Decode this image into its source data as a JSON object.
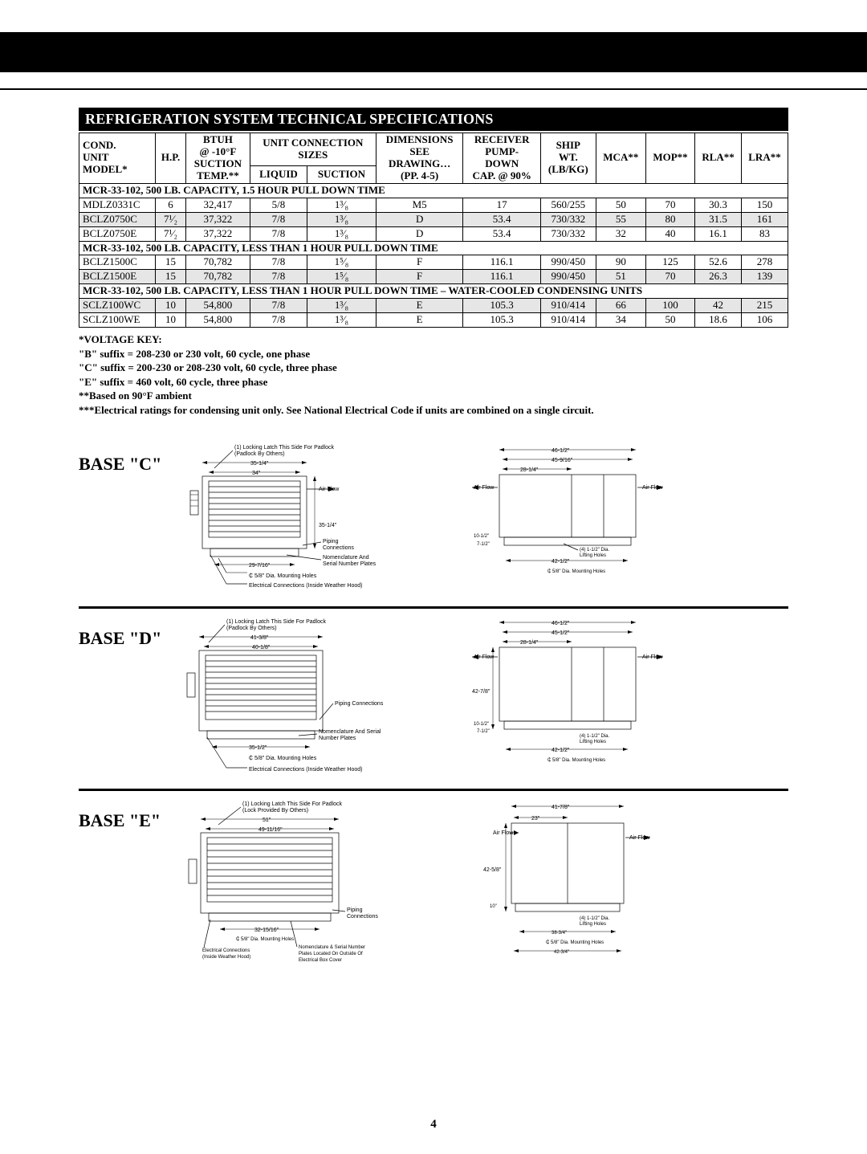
{
  "title": "REFRIGERATION SYSTEM TECHNICAL SPECIFICATIONS",
  "page_number": "4",
  "headers": {
    "c1a": "COND.",
    "c1b": "UNIT",
    "c1c": "MODEL*",
    "c2": "H.P.",
    "c3a": "BTUH",
    "c3b": "@ -10°F",
    "c3c": "SUCTION",
    "c3d": "TEMP.**",
    "c45a": "UNIT CONNECTION",
    "c45b": "SIZES",
    "c4": "LIQUID",
    "c5": "SUCTION",
    "c6a": "DIMENSIONS",
    "c6b": "SEE",
    "c6c": "DRAWING…",
    "c6d": "(PP. 4-5)",
    "c7a": "RECEIVER",
    "c7b": "PUMP-",
    "c7c": "DOWN",
    "c7d": "CAP. @ 90%",
    "c8a": "SHIP",
    "c8b": "WT.",
    "c8c": "(LB/KG)",
    "c9": "MCA**",
    "c10": "MOP**",
    "c11": "RLA**",
    "c12": "LRA**"
  },
  "sections": [
    {
      "title": "MCR-33-102, 500 LB. CAPACITY, 1.5 HOUR PULL DOWN TIME",
      "rows": [
        {
          "shade": false,
          "cells": [
            "MDLZ0331C",
            "6",
            "32,417",
            "5/8",
            "1³⁄₈",
            "M5",
            "17",
            "560/255",
            "50",
            "70",
            "30.3",
            "150"
          ]
        },
        {
          "shade": true,
          "cells": [
            "BCLZ0750C",
            "7¹⁄₂",
            "37,322",
            "7/8",
            "1³⁄₈",
            "D",
            "53.4",
            "730/332",
            "55",
            "80",
            "31.5",
            "161"
          ]
        },
        {
          "shade": false,
          "cells": [
            "BCLZ0750E",
            "7¹⁄₂",
            "37,322",
            "7/8",
            "1³⁄₈",
            "D",
            "53.4",
            "730/332",
            "32",
            "40",
            "16.1",
            "83"
          ]
        }
      ]
    },
    {
      "title": "MCR-33-102, 500 LB. CAPACITY, LESS THAN 1 HOUR PULL DOWN TIME",
      "rows": [
        {
          "shade": false,
          "cells": [
            "BCLZ1500C",
            "15",
            "70,782",
            "7/8",
            "1⁵⁄₈",
            "F",
            "116.1",
            "990/450",
            "90",
            "125",
            "52.6",
            "278"
          ]
        },
        {
          "shade": true,
          "cells": [
            "BCLZ1500E",
            "15",
            "70,782",
            "7/8",
            "1⁵⁄₈",
            "F",
            "116.1",
            "990/450",
            "51",
            "70",
            "26.3",
            "139"
          ]
        }
      ]
    },
    {
      "title": "MCR-33-102, 500 LB. CAPACITY, LESS THAN 1 HOUR PULL DOWN TIME – WATER-COOLED CONDENSING UNITS",
      "rows": [
        {
          "shade": true,
          "cells": [
            "SCLZ100WC",
            "10",
            "54,800",
            "7/8",
            "1³⁄₈",
            "E",
            "105.3",
            "910/414",
            "66",
            "100",
            "42",
            "215"
          ]
        },
        {
          "shade": false,
          "cells": [
            "SCLZ100WE",
            "10",
            "54,800",
            "7/8",
            "1³⁄₈",
            "E",
            "105.3",
            "910/414",
            "34",
            "50",
            "18.6",
            "106"
          ]
        }
      ]
    }
  ],
  "notes": [
    "*VOLTAGE KEY:",
    "\"B\" suffix = 208-230 or 230 volt, 60 cycle, one phase",
    "\"C\" suffix = 200-230 or 208-230 volt, 60 cycle, three phase",
    "\"E\" suffix = 460 volt, 60 cycle, three phase",
    "**Based on 90°F ambient",
    "***Electrical ratings for condensing unit only. See National Electrical Code if units are combined on a single circuit."
  ],
  "bases": {
    "c": {
      "label": "BASE \"C\"",
      "front": {
        "latch_note": "(1) Locking Latch This Side For Padlock",
        "padlock_note": "(Padlock By Others)",
        "top_dim": "35-1/4\"",
        "inner_dim": "34\"",
        "height_dim": "35-1/4\"",
        "airflow": "Air Flow",
        "piping": "Piping",
        "piping2": "Connections",
        "nomen": "Nomenclature And",
        "nomen2": "Serial Number Plates",
        "base_dim": "29-7/16\"",
        "mount": "₵ 5/8\" Dia. Mounting Holes",
        "elec": "Electrical Connections (Inside Weather Hood)"
      },
      "side": {
        "top_dim": "46-1/2\"",
        "top_dim2": "45-9/16\"",
        "top_dim3": "28-1/4\"",
        "airflow": "Air Flow",
        "left_dim1": "10-1/2\"",
        "left_dim2": "7-1/2\"",
        "lift": "(4) 1-1/2\" Dia.",
        "lift2": "Lifting Holes",
        "base_dim": "42-1/2\"",
        "mount": "₵ 5/8\" Dia. Mounting Holes"
      }
    },
    "d": {
      "label": "BASE \"D\"",
      "front": {
        "latch_note": "(1) Locking Latch This Side For Padlock",
        "padlock_note": "(Padlock By Others)",
        "top_dim": "41-3/8\"",
        "inner_dim": "40-1/8\"",
        "piping": "Piping Connections",
        "nomen": "Nomenclature And Serial",
        "nomen2": "Number Plates",
        "base_dim": "35-1/2\"",
        "mount": "₵ 5/8\" Dia. Mounting Holes",
        "elec": "Electrical Connections (Inside Weather Hood)"
      },
      "side": {
        "top_dim": "46-1/2\"",
        "top_dim2": "45-1/2\"",
        "top_dim3": "28-1/4\"",
        "airflow": "Air Flow",
        "height_dim": "42-7/8\"",
        "left_dim1": "10-1/2\"",
        "left_dim2": "7-1/2\"",
        "lift": "(4) 1-1/2\" Dia.",
        "lift2": "Lifting Holes",
        "base_dim": "42-1/2\"",
        "mount": "₵ 5/8\" Dia. Mounting Holes"
      }
    },
    "e": {
      "label": "BASE \"E\"",
      "front": {
        "latch_note": "(1) Locking Latch This Side For Padlock",
        "padlock_note": "(Lock Provided By Others)",
        "top_dim": "51\"",
        "inner_dim": "49-11/16\"",
        "piping": "Piping",
        "piping2": "Connections",
        "base_dim": "32-15/16\"",
        "mount": "₵ 5/8\" Dia. Mounting Holes",
        "elec": "Electrical Connections",
        "elec2": "(Inside Weather Hood)",
        "nomen": "Nomenclature & Serial Number",
        "nomen2": "Plates Located On Outside Of",
        "nomen3": "Electrical Box Cover"
      },
      "side": {
        "top_dim": "41-7/8\"",
        "top_dim2": "23\"",
        "airflow": "Air Flow",
        "height_dim": "42-5/8\"",
        "left_dim1": "10\"",
        "lift": "(4) 1-1/2\" Dia.",
        "lift2": "Lifting Holes",
        "base_dim2": "38-3/4\"",
        "mount": "₵ 5/8\" Dia. Mounting Holes",
        "base_dim3": "42-3/4\""
      }
    }
  }
}
